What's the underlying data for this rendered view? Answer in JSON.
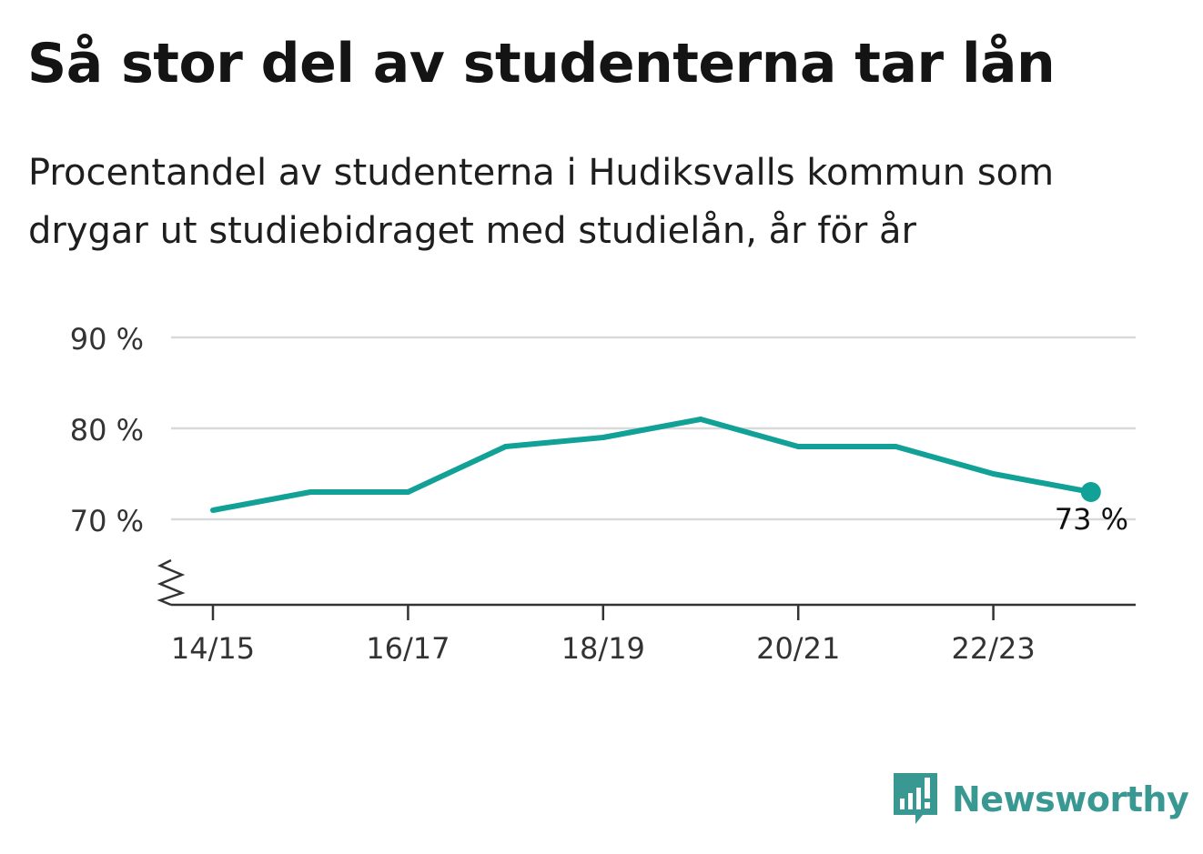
{
  "title": "Så stor del av studenterna tar lån",
  "subtitle": "Procentandel av studenterna i Hudiksvalls kommun som drygar ut studiebidraget med studielån, år för år",
  "brand": {
    "name": "Newsworthy",
    "color": "#3a9893"
  },
  "chart_data": {
    "type": "line",
    "title": "Så stor del av studenterna tar lån",
    "subtitle": "Procentandel av studenterna i Hudiksvalls kommun som drygar ut studiebidraget med studielån, år för år",
    "xlabel": "",
    "ylabel": "",
    "x": [
      "14/15",
      "15/16",
      "16/17",
      "17/18",
      "18/19",
      "19/20",
      "20/21",
      "21/22",
      "22/23",
      "23/24"
    ],
    "x_tick_labels": [
      "14/15",
      "16/17",
      "18/19",
      "20/21",
      "22/23"
    ],
    "y_tick_labels": [
      "70 %",
      "80 %",
      "90 %"
    ],
    "y_ticks": [
      70,
      80,
      90
    ],
    "ylim": [
      60.6,
      90
    ],
    "y_axis_break": true,
    "grid": true,
    "series": [
      {
        "values": [
          71,
          73,
          73,
          78,
          79,
          81,
          78,
          78,
          75,
          73
        ],
        "color": "#12a197"
      }
    ],
    "end_label": "73 %"
  }
}
